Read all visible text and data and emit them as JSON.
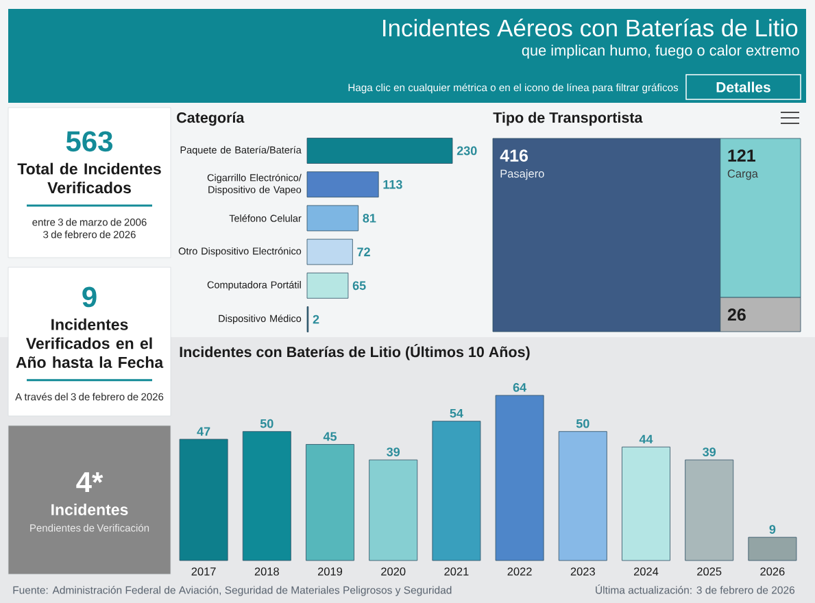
{
  "chart_data": [
    {
      "type": "other",
      "title": "Incidentes Aéreos con Baterías de Litio",
      "subtitle": "que implican humo, fuego o calor extremo",
      "color": "#0e8793",
      "annotations": [
        "Haga clic en cualquier métrica o en el icono de línea para filtrar gráficos",
        "Detalles"
      ]
    },
    {
      "type": "other",
      "color": "#ffffff",
      "annotations": [
        "563",
        "Total de Incidentes Verificados",
        "entre 3 de marzo de 2006",
        "3 de febrero de 2026"
      ]
    },
    {
      "type": "bar",
      "orientation": "horizontal",
      "title": "Categoría",
      "categories": [
        "Paquete de Batería/Batería",
        "Cigarrillo Electrónico/Dispositivo de Vapeo",
        "Teléfono Celular",
        "Otro Dispositivo Electrónico",
        "Computadora Portátil",
        "Dispositivo Médico"
      ],
      "values": [
        230,
        113,
        81,
        72,
        65,
        2
      ],
      "colors": [
        "#0e818e",
        "#4f80c6",
        "#7db6e3",
        "#bdd9f1",
        "#b6e6e3",
        "#2e5e74"
      ],
      "data_labels": true
    },
    {
      "type": "other",
      "title": "Tipo de Transportista",
      "categories": [
        "Pasajero",
        "Carga",
        null
      ],
      "values": [
        416,
        121,
        26
      ],
      "colors": [
        "#3d5b85",
        "#7fcfd0",
        "#b4b4b4"
      ],
      "data_labels": true
    },
    {
      "type": "other",
      "color": "#ffffff",
      "annotations": [
        "9",
        "Incidentes Verificados en el Año hasta la Fecha",
        "A través del 3 de febrero de 2026"
      ]
    },
    {
      "type": "other",
      "color": "#878787",
      "annotations": [
        "4*",
        "Incidentes",
        "Pendientes de Verificación"
      ]
    },
    {
      "type": "bar",
      "title": "Incidentes con Baterías de Litio (Últimos 10 Años)",
      "categories": [
        "2017",
        "2018",
        "2019",
        "2020",
        "2021",
        "2022",
        "2023",
        "2024",
        "2025",
        "2026"
      ],
      "values": [
        47,
        50,
        45,
        39,
        54,
        64,
        50,
        44,
        39,
        9
      ],
      "colors": [
        "#0e7f8c",
        "#0f8a97",
        "#56b7bb",
        "#86cfd2",
        "#399fbd",
        "#4e86c9",
        "#87b9e7",
        "#b4e5e4",
        "#a9b8ba",
        "#93a4a5"
      ],
      "data_labels": true,
      "annotations": [
        "Fuente: Administración Federal de Aviación, Seguridad de Materiales Peligrosos y Seguridad",
        "Última actualización: 3 de febrero de 2026"
      ]
    }
  ]
}
